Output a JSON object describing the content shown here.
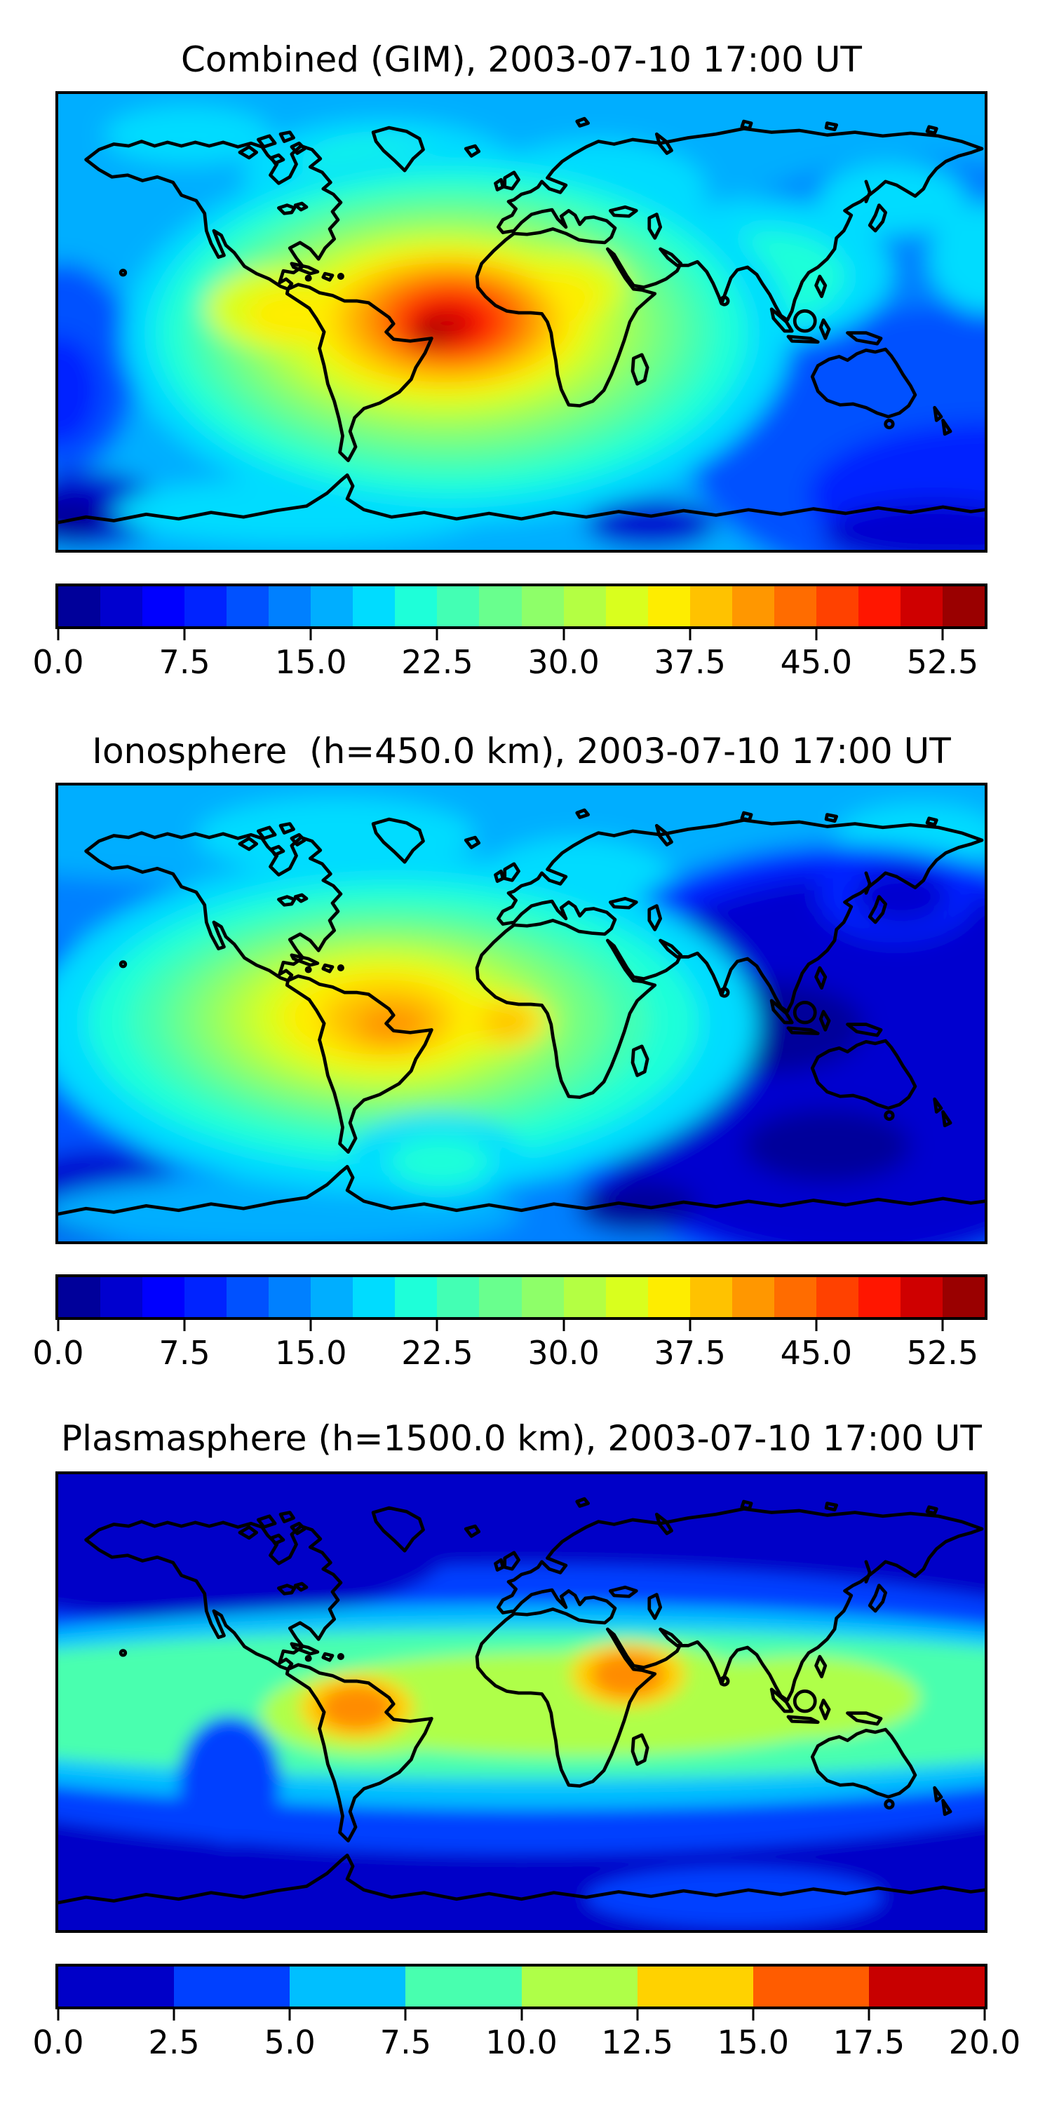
{
  "chart_data": {
    "type": "heatmap",
    "subtype": "filled-contour world maps (equirectangular, lon -180..180, lat -90..90)",
    "colormap": "jet",
    "grid": "off",
    "legend": "horizontal discrete colorbar below each map",
    "panels": [
      {
        "title": "Combined (GIM), 2003-07-10 17:00 UT",
        "peak_region": "northern South America and tropical Atlantic toward west Africa",
        "approx_peak_value": 55,
        "approx_min_value": 2.5,
        "colorbar": {
          "vmin": 0,
          "vmax": 55,
          "level_step": 2.5,
          "tick_values": [
            0,
            7.5,
            15,
            22.5,
            30,
            37.5,
            45,
            52.5
          ],
          "tick_labels": [
            "0.0",
            "7.5",
            "15.0",
            "22.5",
            "30.0",
            "37.5",
            "45.0",
            "52.5"
          ],
          "segment_colors": [
            "#00009a",
            "#0000cf",
            "#0000ff",
            "#0023ff",
            "#0051ff",
            "#0080ff",
            "#00aeff",
            "#00dcff",
            "#1effd9",
            "#43ffb4",
            "#69ff8e",
            "#8eff69",
            "#b4ff43",
            "#d9ff1e",
            "#feed00",
            "#ffc200",
            "#ff9700",
            "#ff6c00",
            "#ff4100",
            "#ff1600",
            "#cf0000",
            "#9a0000"
          ]
        },
        "map": {
          "base": "#00aeff",
          "blur": 13,
          "blobs": [
            [
              940,
              260,
              300,
              190,
              "#0080ff"
            ],
            [
              980,
              390,
              300,
              160,
              "#0051ff"
            ],
            [
              1010,
              440,
              200,
              80,
              "#0023ff"
            ],
            [
              640,
              472,
              70,
              26,
              "#0000cf"
            ],
            [
              945,
              482,
              120,
              36,
              "#0000cf"
            ],
            [
              5,
              300,
              80,
              115,
              "#0051ff"
            ],
            [
              0,
              325,
              45,
              60,
              "#0023ff"
            ],
            [
              28,
              456,
              85,
              42,
              "#0000cf"
            ],
            [
              12,
              464,
              40,
              22,
              "#00009a"
            ],
            [
              350,
              88,
              150,
              60,
              "#00dcff"
            ],
            [
              352,
              90,
              95,
              38,
              "#1effd9"
            ],
            [
              580,
              105,
              120,
              55,
              "#00dcff"
            ],
            [
              140,
              45,
              90,
              32,
              "#00dcff"
            ],
            [
              900,
              115,
              80,
              40,
              "#00dcff"
            ],
            [
              1000,
              180,
              60,
              60,
              "#00dcff"
            ],
            [
              760,
              195,
              140,
              80,
              "#00dcff"
            ],
            [
              765,
              200,
              85,
              50,
              "#1effd9"
            ],
            [
              260,
              458,
              200,
              36,
              "#00dcff"
            ],
            [
              430,
              265,
              360,
              205,
              "#00dcff"
            ],
            [
              425,
              262,
              320,
              180,
              "#1effd9"
            ],
            [
              422,
              260,
              285,
              158,
              "#43ffb4"
            ],
            [
              420,
              258,
              255,
              140,
              "#69ff8e"
            ],
            [
              418,
              256,
              225,
              122,
              "#8eff69"
            ],
            [
              416,
              254,
              198,
              107,
              "#b4ff43"
            ],
            [
              415,
              252,
              172,
              93,
              "#d9ff1e"
            ],
            [
              545,
              210,
              70,
              40,
              "#d9ff1e"
            ],
            [
              240,
              235,
              80,
              45,
              "#d9ff1e"
            ],
            [
              418,
              250,
              146,
              80,
              "#feed00"
            ],
            [
              530,
              225,
              55,
              32,
              "#feed00"
            ],
            [
              255,
              242,
              52,
              30,
              "#feed00"
            ],
            [
              420,
              249,
              122,
              68,
              "#ffc200"
            ],
            [
              422,
              248,
              100,
              57,
              "#ff9700"
            ],
            [
              424,
              248,
              80,
              47,
              "#ff6c00"
            ],
            [
              424,
              249,
              62,
              38,
              "#ff4100"
            ],
            [
              422,
              251,
              46,
              29,
              "#ff1600"
            ],
            [
              418,
              254,
              32,
              21,
              "#cf0000"
            ],
            [
              400,
              264,
              18,
              13,
              "#9a0000"
            ]
          ]
        }
      },
      {
        "title": "Ionosphere  (h=450.0 km), 2003-07-10 17:00 UT",
        "peak_region": "northern South America / Caribbean",
        "approx_peak_value": 42.5,
        "approx_min_value": 2.5,
        "colorbar": {
          "vmin": 0,
          "vmax": 55,
          "level_step": 2.5,
          "tick_values": [
            0,
            7.5,
            15,
            22.5,
            30,
            37.5,
            45,
            52.5
          ],
          "tick_labels": [
            "0.0",
            "7.5",
            "15.0",
            "22.5",
            "30.0",
            "37.5",
            "45.0",
            "52.5"
          ],
          "segment_colors": [
            "#00009a",
            "#0000cf",
            "#0000ff",
            "#0023ff",
            "#0051ff",
            "#0080ff",
            "#00aeff",
            "#00dcff",
            "#1effd9",
            "#43ffb4",
            "#69ff8e",
            "#8eff69",
            "#b4ff43",
            "#d9ff1e",
            "#feed00",
            "#ffc200",
            "#ff9700",
            "#ff6c00",
            "#ff4100",
            "#ff1600",
            "#cf0000",
            "#9a0000"
          ]
        },
        "map": {
          "base": "#0080ff",
          "blur": 13,
          "blobs": [
            [
              500,
              38,
              780,
              78,
              "#00aeff"
            ],
            [
              300,
              55,
              150,
              42,
              "#00dcff"
            ],
            [
              560,
              115,
              110,
              58,
              "#00dcff"
            ],
            [
              930,
              55,
              90,
              35,
              "#00dcff"
            ],
            [
              15,
              320,
              85,
              150,
              "#0051ff"
            ],
            [
              40,
              450,
              95,
              50,
              "#0000cf"
            ],
            [
              240,
              468,
              260,
              40,
              "#00aeff"
            ],
            [
              850,
              300,
              340,
              235,
              "#0023ff"
            ],
            [
              860,
              310,
              310,
              210,
              "#0000cf"
            ],
            [
              770,
              265,
              100,
              50,
              "#00009a"
            ],
            [
              830,
              395,
              90,
              40,
              "#00009a"
            ],
            [
              625,
              462,
              65,
              28,
              "#00009a"
            ],
            [
              905,
              120,
              85,
              50,
              "#0023ff"
            ],
            [
              910,
              122,
              50,
              30,
              "#0000cf"
            ],
            [
              365,
              262,
              390,
              185,
              "#00dcff"
            ],
            [
              362,
              260,
              330,
              155,
              "#1effd9"
            ],
            [
              358,
              258,
              280,
              130,
              "#43ffb4"
            ],
            [
              355,
              257,
              240,
              112,
              "#69ff8e"
            ],
            [
              352,
              256,
              205,
              97,
              "#8eff69"
            ],
            [
              350,
              255,
              172,
              83,
              "#b4ff43"
            ],
            [
              349,
              254,
              140,
              70,
              "#d9ff1e"
            ],
            [
              350,
              254,
              108,
              55,
              "#feed00"
            ],
            [
              480,
              258,
              50,
              30,
              "#feed00"
            ],
            [
              355,
              256,
              70,
              38,
              "#ffc200"
            ],
            [
              485,
              260,
              28,
              18,
              "#ffc200"
            ],
            [
              360,
              262,
              38,
              22,
              "#ff9700"
            ],
            [
              408,
              408,
              95,
              48,
              "#00dcff"
            ],
            [
              412,
              412,
              55,
              28,
              "#1effd9"
            ]
          ]
        }
      },
      {
        "title": "Plasmasphere (h=1500.0 km), 2003-07-10 17:00 UT",
        "peak_region": "two equatorial maxima: northern South America and Arabia / Horn of Africa",
        "approx_peak_value": 16,
        "approx_min_value": 2.5,
        "colorbar": {
          "vmin": 0,
          "vmax": 20,
          "level_step": 2.5,
          "tick_values": [
            0,
            2.5,
            5,
            7.5,
            10,
            12.5,
            15,
            17.5,
            20
          ],
          "tick_labels": [
            "0.0",
            "2.5",
            "5.0",
            "7.5",
            "10.0",
            "12.5",
            "15.0",
            "17.5",
            "20.0"
          ],
          "segment_colors": [
            "#0000c8",
            "#0040ff",
            "#00bfff",
            "#48ffaf",
            "#afff48",
            "#ffd200",
            "#ff5c00",
            "#c80000"
          ]
        },
        "map": {
          "base": "#0000c8",
          "blur": 9,
          "blobs": [
            [
              500,
              258,
              790,
              158,
              "#0040ff"
            ],
            [
              140,
              85,
              280,
              75,
              "#0000c8"
            ],
            [
              505,
              255,
              790,
              112,
              "#00bfff"
            ],
            [
              515,
              252,
              760,
              82,
              "#48ffaf"
            ],
            [
              185,
              335,
              55,
              70,
              "#0040ff"
            ],
            [
              555,
              252,
              330,
              57,
              "#afff48"
            ],
            [
              800,
              245,
              130,
              45,
              "#afff48"
            ],
            [
              330,
              262,
              110,
              47,
              "#afff48"
            ],
            [
              620,
              230,
              120,
              45,
              "#afff48"
            ],
            [
              322,
              256,
              62,
              36,
              "#ffd200"
            ],
            [
              615,
              220,
              62,
              36,
              "#ffd200"
            ],
            [
              322,
              256,
              40,
              25,
              "#ff8c00"
            ],
            [
              615,
              220,
              40,
              25,
              "#ff8c00"
            ],
            [
              730,
              464,
              160,
              32,
              "#0040ff"
            ]
          ]
        }
      }
    ]
  }
}
